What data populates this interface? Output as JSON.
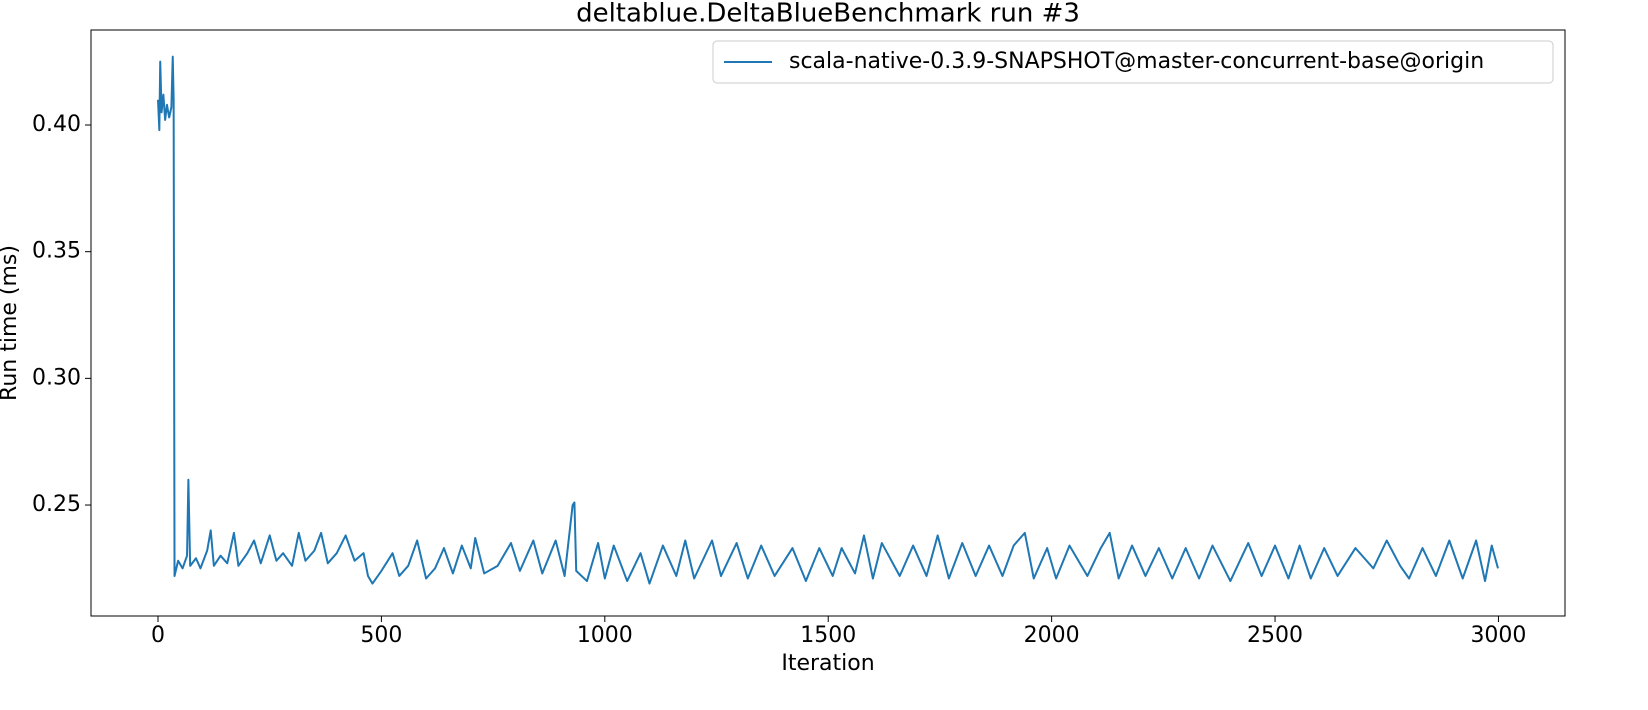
{
  "chart_data": {
    "type": "line",
    "title": "deltablue.DeltaBlueBenchmark run #3",
    "x_label": "Iteration",
    "y_label": "Run time (ms)",
    "xlim": [
      -149.95,
      3148.95
    ],
    "ylim": [
      0.2062,
      0.4375
    ],
    "xticks": [
      0,
      500,
      1000,
      1500,
      2000,
      2500,
      3000
    ],
    "yticks": [
      0.25,
      {
        "value": 0.3,
        "label": "0.30"
      },
      0.35,
      {
        "value": 0.4,
        "label": "0.40"
      }
    ],
    "grid": false,
    "legend": "upper right",
    "series": [
      {
        "name": "scala-native-0.3.9-SNAPSHOT@master-concurrent-base@origin",
        "color": "#1f77b4",
        "x": [
          0,
          3,
          5,
          8,
          12,
          16,
          20,
          25,
          30,
          33,
          35,
          37,
          45,
          55,
          65,
          68,
          72,
          85,
          95,
          110,
          118,
          125,
          140,
          155,
          170,
          180,
          200,
          215,
          230,
          250,
          265,
          280,
          300,
          315,
          330,
          350,
          365,
          380,
          400,
          420,
          440,
          460,
          470,
          480,
          500,
          525,
          540,
          560,
          580,
          600,
          620,
          640,
          660,
          680,
          700,
          710,
          730,
          760,
          790,
          810,
          840,
          860,
          890,
          910,
          928,
          932,
          936,
          960,
          985,
          1000,
          1020,
          1050,
          1080,
          1100,
          1130,
          1160,
          1180,
          1200,
          1240,
          1260,
          1295,
          1320,
          1350,
          1380,
          1420,
          1450,
          1480,
          1510,
          1530,
          1560,
          1580,
          1600,
          1620,
          1660,
          1690,
          1720,
          1745,
          1770,
          1800,
          1830,
          1860,
          1890,
          1915,
          1940,
          1960,
          1990,
          2010,
          2040,
          2080,
          2110,
          2130,
          2150,
          2180,
          2210,
          2240,
          2270,
          2300,
          2330,
          2360,
          2400,
          2440,
          2470,
          2500,
          2530,
          2555,
          2580,
          2610,
          2640,
          2680,
          2720,
          2750,
          2780,
          2800,
          2830,
          2860,
          2890,
          2920,
          2950,
          2970,
          2985,
          2999
        ],
        "values": [
          0.41,
          0.398,
          0.425,
          0.405,
          0.412,
          0.402,
          0.408,
          0.403,
          0.407,
          0.427,
          0.41,
          0.222,
          0.228,
          0.225,
          0.23,
          0.26,
          0.226,
          0.229,
          0.225,
          0.232,
          0.24,
          0.226,
          0.23,
          0.227,
          0.239,
          0.226,
          0.231,
          0.236,
          0.227,
          0.238,
          0.228,
          0.231,
          0.226,
          0.239,
          0.228,
          0.232,
          0.239,
          0.227,
          0.231,
          0.238,
          0.228,
          0.231,
          0.222,
          0.219,
          0.224,
          0.231,
          0.222,
          0.226,
          0.236,
          0.221,
          0.225,
          0.233,
          0.223,
          0.234,
          0.225,
          0.237,
          0.223,
          0.226,
          0.235,
          0.224,
          0.236,
          0.223,
          0.236,
          0.222,
          0.25,
          0.251,
          0.224,
          0.22,
          0.235,
          0.221,
          0.234,
          0.22,
          0.231,
          0.219,
          0.234,
          0.222,
          0.236,
          0.221,
          0.236,
          0.222,
          0.235,
          0.221,
          0.234,
          0.222,
          0.233,
          0.22,
          0.233,
          0.222,
          0.233,
          0.223,
          0.238,
          0.221,
          0.235,
          0.222,
          0.234,
          0.222,
          0.238,
          0.221,
          0.235,
          0.222,
          0.234,
          0.222,
          0.234,
          0.239,
          0.221,
          0.233,
          0.221,
          0.234,
          0.222,
          0.233,
          0.239,
          0.221,
          0.234,
          0.222,
          0.233,
          0.221,
          0.233,
          0.221,
          0.234,
          0.22,
          0.235,
          0.222,
          0.234,
          0.221,
          0.234,
          0.221,
          0.233,
          0.222,
          0.233,
          0.225,
          0.236,
          0.226,
          0.221,
          0.233,
          0.222,
          0.236,
          0.221,
          0.236,
          0.22,
          0.234,
          0.225
        ]
      }
    ]
  }
}
